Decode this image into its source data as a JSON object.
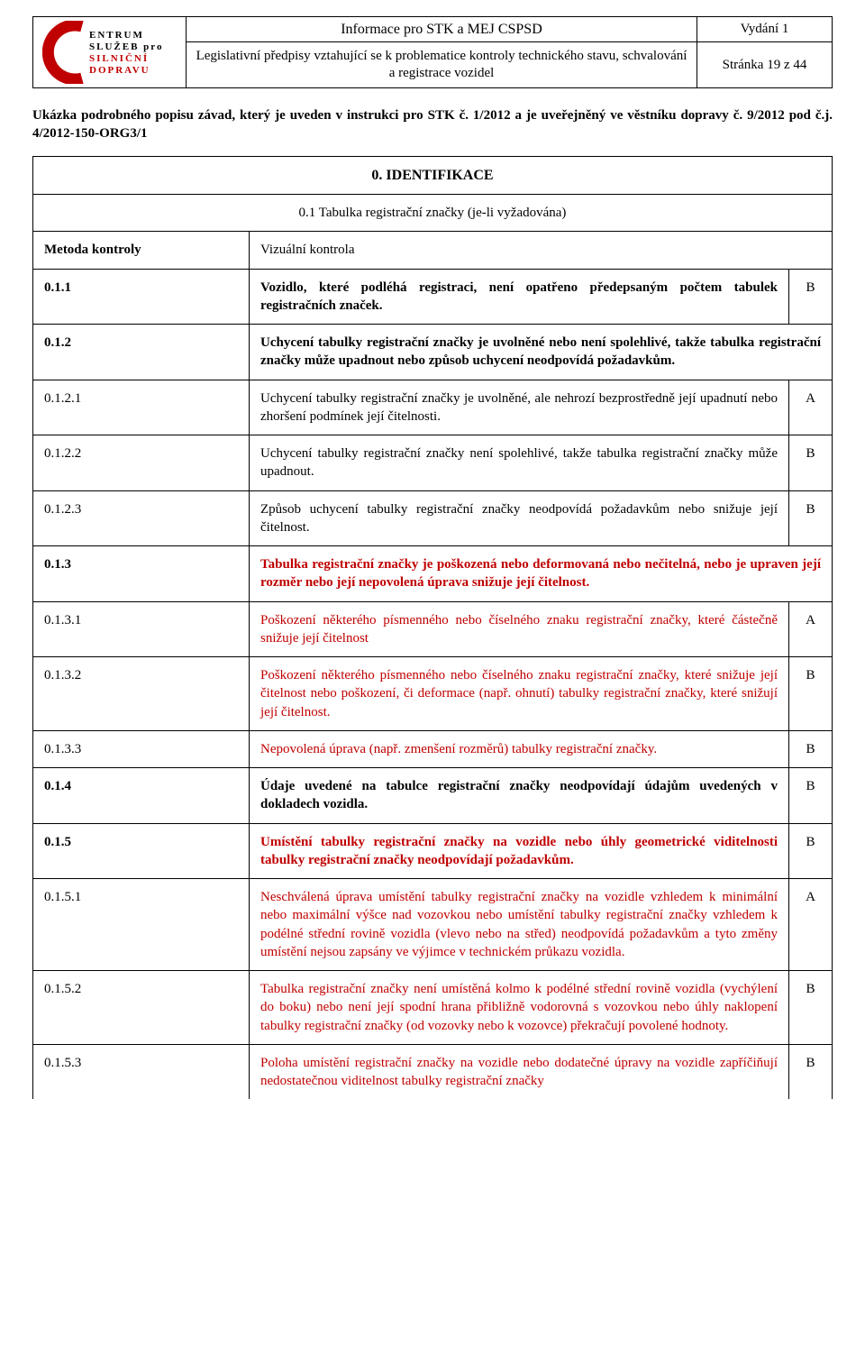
{
  "header": {
    "logo": {
      "line1": "ENTRUM",
      "line2": "SLUŽEB pro",
      "line3": "SILNIČNÍ",
      "line4": "DOPRAVU"
    },
    "title": "Informace pro STK a MEJ CSPSD",
    "subtitle": "Legislativní předpisy vztahující se k problematice kontroly technického stavu, schvalování a registrace vozidel",
    "edition": "Vydání 1",
    "page": "Stránka 19 z 44"
  },
  "intro": "Ukázka podrobného popisu závad, který je uveden v instrukci pro STK č. 1/2012 a je uveřejněný ve věstníku dopravy č. 9/2012 pod č.j. 4/2012-150-ORG3/1",
  "section": {
    "title": "0. IDENTIFIKACE",
    "sub": "0.1 Tabulka registrační značky (je-li vyžadována)",
    "method_label": "Metoda kontroly",
    "method_value": "Vizuální kontrola"
  },
  "rows": [
    {
      "code": "0.1.1",
      "text": "Vozidlo, které podléhá registraci, není opatřeno předepsaným počtem tabulek registračních značek.",
      "grade": "B",
      "bold": true,
      "red": false
    },
    {
      "code": "0.1.2",
      "text": "Uchycení tabulky registrační značky je uvolněné nebo není spolehlivé, takže tabulka registrační značky může upadnout nebo způsob uchycení neodpovídá požadavkům.",
      "grade": "",
      "bold": true,
      "red": false
    },
    {
      "code": "0.1.2.1",
      "text": "Uchycení tabulky registrační značky je uvolněné, ale nehrozí bezprostředně její upadnutí nebo zhoršení podmínek její čitelnosti.",
      "grade": "A",
      "bold": false,
      "red": false
    },
    {
      "code": "0.1.2.2",
      "text": "Uchycení tabulky registrační značky není spolehlivé, takže tabulka registrační značky může upadnout.",
      "grade": "B",
      "bold": false,
      "red": false
    },
    {
      "code": "0.1.2.3",
      "text": "Způsob uchycení tabulky registrační značky neodpovídá požadavkům nebo snižuje její čitelnost.",
      "grade": "B",
      "bold": false,
      "red": false
    },
    {
      "code": "0.1.3",
      "text": "Tabulka registrační značky je poškozená nebo deformovaná nebo nečitelná, nebo je upraven její rozměr nebo její nepovolená úprava snižuje její čitelnost.",
      "grade": "",
      "bold": true,
      "red": true
    },
    {
      "code": "0.1.3.1",
      "text": "Poškození některého písmenného nebo číselného znaku registrační značky, které částečně snižuje její čitelnost",
      "grade": "A",
      "bold": false,
      "red": true
    },
    {
      "code": "0.1.3.2",
      "text": "Poškození některého písmenného nebo číselného znaku registrační značky, které snižuje její čitelnost nebo poškození, či deformace (např. ohnutí) tabulky registrační značky, které snižují její čitelnost.",
      "grade": "B",
      "bold": false,
      "red": true
    },
    {
      "code": "0.1.3.3",
      "text": "Nepovolená úprava (např. zmenšení rozměrů) tabulky registrační značky.",
      "grade": "B",
      "bold": false,
      "red": true
    },
    {
      "code": "0.1.4",
      "text": "Údaje uvedené na tabulce registrační značky neodpovídají údajům uvedených v dokladech vozidla.",
      "grade": "B",
      "bold": true,
      "red": false
    },
    {
      "code": "0.1.5",
      "text": "Umístění tabulky registrační značky na vozidle nebo úhly geometrické viditelnosti tabulky registrační značky neodpovídají požadavkům.",
      "grade": "B",
      "bold": true,
      "red": true
    },
    {
      "code": "0.1.5.1",
      "text": "Neschválená úprava umístění tabulky registrační značky na vozidle vzhledem k minimální nebo maximální výšce nad vozovkou nebo umístění tabulky registrační značky vzhledem k podélné střední rovině vozidla (vlevo nebo na střed) neodpovídá požadavkům a tyto změny umístění nejsou zapsány ve výjimce v technickém průkazu vozidla.",
      "grade": "A",
      "bold": false,
      "red": true
    },
    {
      "code": "0.1.5.2",
      "text": "Tabulka registrační značky není umístěná kolmo k podélné střední rovině vozidla (vychýlení do boku) nebo není její spodní hrana přibližně vodorovná s vozovkou nebo úhly naklopení tabulky registrační značky (od vozovky nebo k vozovce) překračují povolené hodnoty.",
      "grade": "B",
      "bold": false,
      "red": true
    },
    {
      "code": "0.1.5.3",
      "text": "Poloha umístění registrační značky na vozidle nebo dodatečné úpravy na vozidle zapříčiňují nedostatečnou viditelnost tabulky registrační značky",
      "grade": "B",
      "bold": false,
      "red": true,
      "noBottom": true
    }
  ]
}
